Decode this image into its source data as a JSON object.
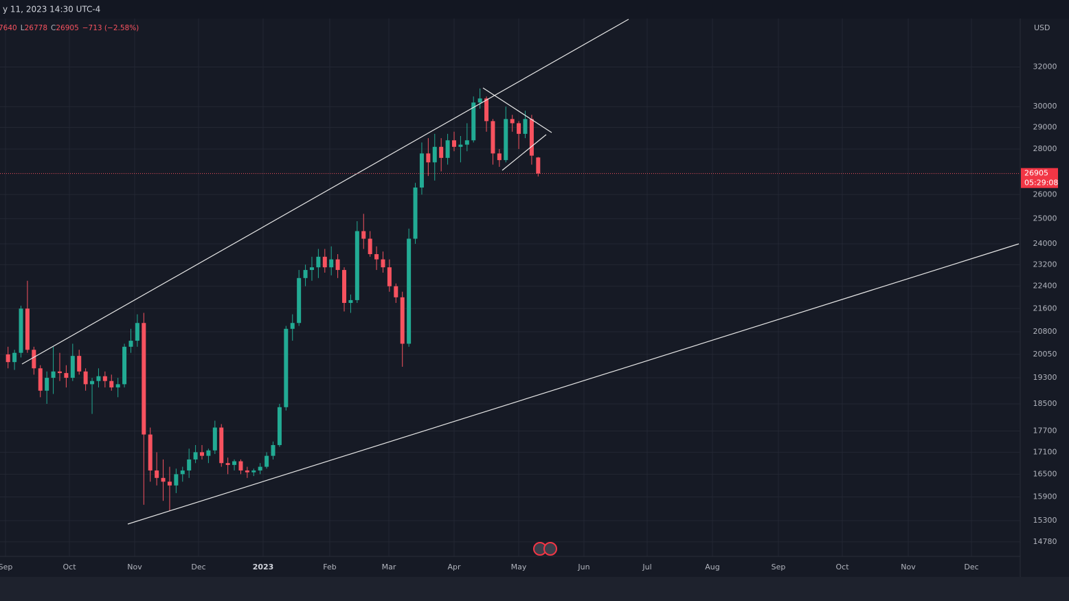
{
  "chart_data": {
    "type": "candlestick",
    "header": "y 11, 2023 14:30 UTC-4",
    "legend_parts": [
      "7640",
      "L",
      "26778",
      "C",
      "26905",
      "−713 (−2.58%)"
    ],
    "currency": "USD",
    "countdown": "05:29:08",
    "log_scale": true,
    "grid": true,
    "up_color": "#22ab94",
    "down_color": "#f7525f",
    "ylim": [
      13960,
      34620
    ],
    "yticks": [
      14780,
      15300,
      15900,
      16500,
      17100,
      17700,
      18500,
      19300,
      20050,
      20800,
      21600,
      22400,
      23200,
      24000,
      25000,
      26000,
      28000,
      29000,
      30000,
      32000
    ],
    "xtick_labels": [
      "Sep",
      "Oct",
      "Nov",
      "Dec",
      "2023",
      "Feb",
      "Mar",
      "Apr",
      "May",
      "Jun",
      "Jul",
      "Aug",
      "Sep",
      "Oct",
      "Nov",
      "Dec"
    ],
    "ohlc": [
      [
        20050,
        20300,
        19600,
        19800
      ],
      [
        19800,
        20200,
        19550,
        20100
      ],
      [
        20100,
        21700,
        19950,
        21600
      ],
      [
        21600,
        22600,
        20100,
        20200
      ],
      [
        20200,
        20300,
        19400,
        19600
      ],
      [
        19600,
        19700,
        18700,
        18900
      ],
      [
        18900,
        19500,
        18500,
        19300
      ],
      [
        19300,
        20300,
        18800,
        19500
      ],
      [
        19500,
        20100,
        19200,
        19450
      ],
      [
        19450,
        19700,
        19000,
        19300
      ],
      [
        19300,
        20400,
        19200,
        20000
      ],
      [
        20000,
        20200,
        19400,
        19500
      ],
      [
        19500,
        19600,
        18900,
        19100
      ],
      [
        19100,
        19300,
        18200,
        19200
      ],
      [
        19200,
        19600,
        19000,
        19350
      ],
      [
        19350,
        19500,
        19000,
        19200
      ],
      [
        19200,
        19400,
        18900,
        19000
      ],
      [
        19000,
        19300,
        18700,
        19100
      ],
      [
        19100,
        20400,
        19000,
        20300
      ],
      [
        20300,
        20900,
        20100,
        20500
      ],
      [
        20500,
        21400,
        20300,
        21100
      ],
      [
        21100,
        21450,
        15700,
        17600
      ],
      [
        17600,
        17800,
        16300,
        16600
      ],
      [
        16600,
        17100,
        16200,
        16400
      ],
      [
        16400,
        16900,
        15800,
        16300
      ],
      [
        16300,
        16700,
        15550,
        16200
      ],
      [
        16200,
        16650,
        16000,
        16500
      ],
      [
        16500,
        16700,
        16300,
        16600
      ],
      [
        16600,
        17200,
        16400,
        16900
      ],
      [
        16900,
        17300,
        16800,
        17100
      ],
      [
        17100,
        17300,
        16900,
        17000
      ],
      [
        17000,
        17200,
        16800,
        17150
      ],
      [
        17150,
        18000,
        17050,
        17800
      ],
      [
        17800,
        17900,
        16700,
        16800
      ],
      [
        16800,
        16950,
        16500,
        16750
      ],
      [
        16750,
        16900,
        16600,
        16850
      ],
      [
        16850,
        16900,
        16500,
        16600
      ],
      [
        16600,
        16700,
        16400,
        16550
      ],
      [
        16550,
        16650,
        16450,
        16600
      ],
      [
        16600,
        16800,
        16500,
        16700
      ],
      [
        16700,
        17100,
        16650,
        17000
      ],
      [
        17000,
        17400,
        16900,
        17300
      ],
      [
        17300,
        18500,
        17250,
        18400
      ],
      [
        18400,
        21000,
        18300,
        20900
      ],
      [
        20900,
        21400,
        20500,
        21100
      ],
      [
        21100,
        23000,
        21000,
        22700
      ],
      [
        22700,
        23200,
        22400,
        23000
      ],
      [
        23000,
        23500,
        22600,
        23100
      ],
      [
        23100,
        23800,
        22700,
        23500
      ],
      [
        23500,
        23800,
        22900,
        23100
      ],
      [
        23100,
        23900,
        22800,
        23400
      ],
      [
        23400,
        23600,
        22700,
        23000
      ],
      [
        23000,
        23100,
        21500,
        21800
      ],
      [
        21800,
        22100,
        21450,
        21900
      ],
      [
        21900,
        24900,
        21800,
        24500
      ],
      [
        24500,
        25200,
        23800,
        24200
      ],
      [
        24200,
        24500,
        23500,
        23600
      ],
      [
        23600,
        23900,
        23000,
        23400
      ],
      [
        23400,
        23700,
        22900,
        23100
      ],
      [
        23100,
        23400,
        22200,
        22400
      ],
      [
        22400,
        22500,
        21800,
        22000
      ],
      [
        22000,
        22200,
        19650,
        20400
      ],
      [
        20400,
        24600,
        20300,
        24200
      ],
      [
        24200,
        26500,
        24000,
        26300
      ],
      [
        26300,
        28300,
        26000,
        27800
      ],
      [
        27800,
        28500,
        26800,
        27400
      ],
      [
        27400,
        28700,
        26600,
        28100
      ],
      [
        28100,
        28500,
        27000,
        27600
      ],
      [
        27600,
        28700,
        27300,
        28400
      ],
      [
        28400,
        28800,
        27900,
        28100
      ],
      [
        28100,
        28600,
        27400,
        28200
      ],
      [
        28200,
        29200,
        27900,
        28400
      ],
      [
        28400,
        30500,
        28300,
        30200
      ],
      [
        30200,
        30900,
        29900,
        30400
      ],
      [
        30400,
        30500,
        28800,
        29300
      ],
      [
        29300,
        29400,
        27300,
        27800
      ],
      [
        27800,
        28000,
        27200,
        27500
      ],
      [
        27500,
        30000,
        27400,
        29400
      ],
      [
        29400,
        29600,
        28800,
        29200
      ],
      [
        29200,
        29300,
        28000,
        28700
      ],
      [
        28700,
        29800,
        28500,
        29400
      ],
      [
        29400,
        29600,
        27300,
        27700
      ],
      [
        27618,
        27640,
        26778,
        26905
      ]
    ]
  }
}
